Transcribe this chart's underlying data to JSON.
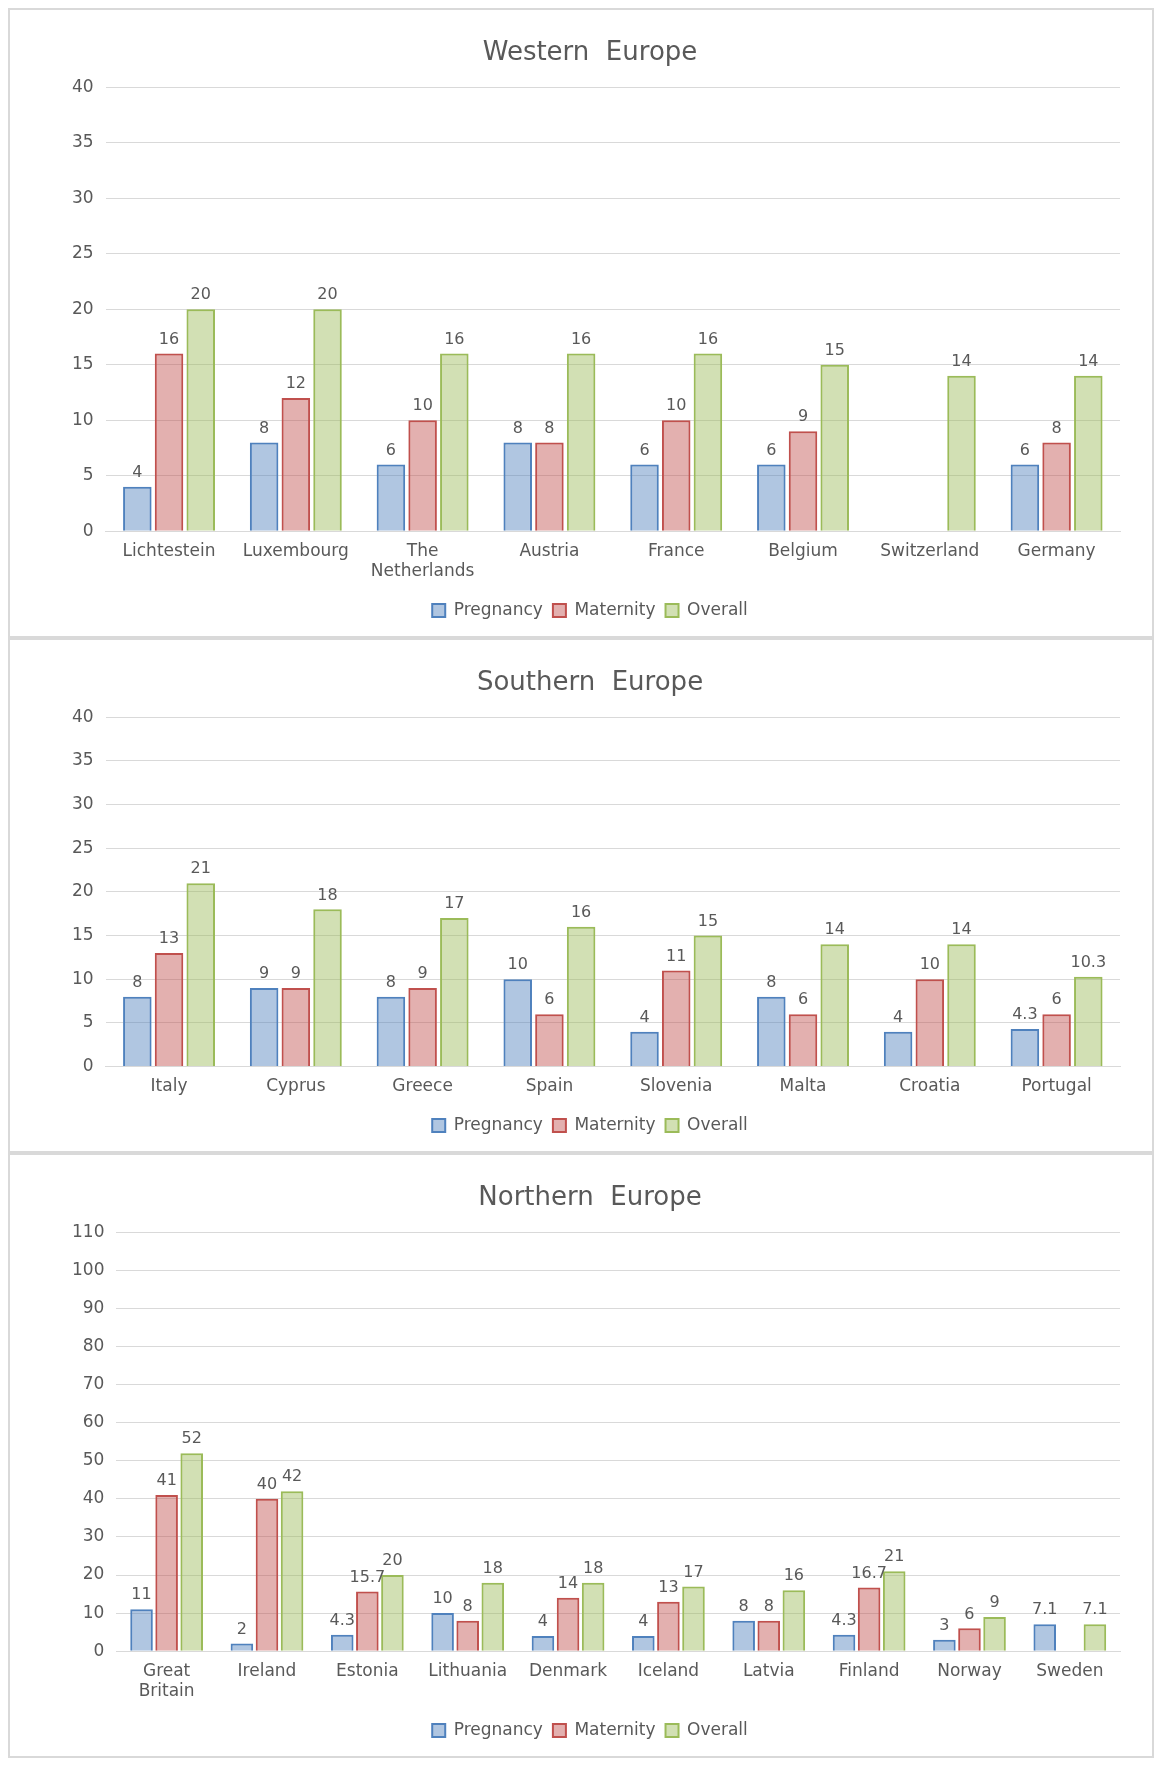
{
  "chart_data": [
    {
      "type": "bar",
      "title": "Western  Europe",
      "categories": [
        "Lichtestein",
        "Luxembourg",
        "The Netherlands",
        "Austria",
        "France",
        "Belgium",
        "Switzerland",
        "Germany"
      ],
      "series": [
        {
          "name": "Pregnancy",
          "color": "#4f81bd",
          "values": [
            4,
            8,
            6,
            8,
            6,
            6,
            null,
            6
          ]
        },
        {
          "name": "Maternity",
          "color": "#c0504d",
          "values": [
            16,
            12,
            10,
            8,
            10,
            9,
            null,
            8
          ]
        },
        {
          "name": "Overall",
          "color": "#9bbb59",
          "values": [
            20,
            20,
            16,
            16,
            16,
            15,
            14,
            14
          ]
        }
      ],
      "ylim": [
        0,
        40
      ],
      "yticks": [
        0,
        5,
        10,
        15,
        20,
        25,
        30,
        35,
        40
      ],
      "grid": "y",
      "legend": "bottom",
      "data_labels": true
    },
    {
      "type": "bar",
      "title": "Southern  Europe",
      "categories": [
        "Italy",
        "Cyprus",
        "Greece",
        "Spain",
        "Slovenia",
        "Malta",
        "Croatia",
        "Portugal"
      ],
      "series": [
        {
          "name": "Pregnancy",
          "color": "#4f81bd",
          "values": [
            8,
            9,
            8,
            10,
            4,
            8,
            4,
            4.3
          ]
        },
        {
          "name": "Maternity",
          "color": "#c0504d",
          "values": [
            13,
            9,
            9,
            6,
            11,
            6,
            10,
            6
          ]
        },
        {
          "name": "Overall",
          "color": "#9bbb59",
          "values": [
            21,
            18,
            17,
            16,
            15,
            14,
            14,
            10.3
          ]
        }
      ],
      "ylim": [
        0,
        40
      ],
      "yticks": [
        0,
        5,
        10,
        15,
        20,
        25,
        30,
        35,
        40
      ],
      "grid": "y",
      "legend": "bottom",
      "data_labels": true
    },
    {
      "type": "bar",
      "title": "Northern  Europe",
      "categories": [
        "Great Britain",
        "Ireland",
        "Estonia",
        "Lithuania",
        "Denmark",
        "Iceland",
        "Latvia",
        "Finland",
        "Norway",
        "Sweden"
      ],
      "series": [
        {
          "name": "Pregnancy",
          "color": "#4f81bd",
          "values": [
            11,
            2,
            4.3,
            10,
            4,
            4,
            8,
            4.3,
            3,
            7.1
          ]
        },
        {
          "name": "Maternity",
          "color": "#c0504d",
          "values": [
            41,
            40,
            15.7,
            8,
            14,
            13,
            8,
            16.7,
            6,
            null
          ]
        },
        {
          "name": "Overall",
          "color": "#9bbb59",
          "values": [
            52,
            42,
            20,
            18,
            18,
            17,
            16,
            21,
            9,
            7.1
          ]
        }
      ],
      "ylim": [
        0,
        110
      ],
      "yticks": [
        0,
        10,
        20,
        30,
        40,
        50,
        60,
        70,
        80,
        90,
        100,
        110
      ],
      "grid": "y",
      "legend": "bottom",
      "data_labels": true
    }
  ]
}
